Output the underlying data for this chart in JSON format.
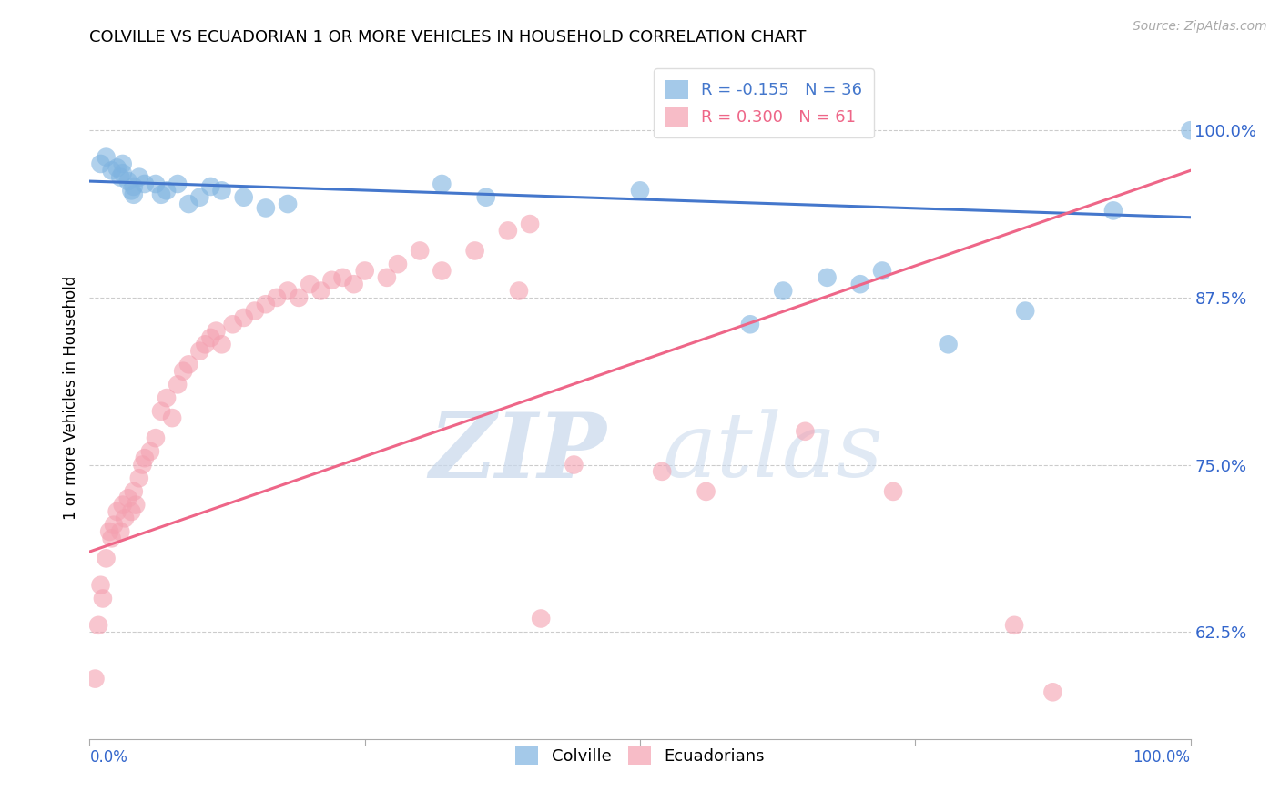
{
  "title": "COLVILLE VS ECUADORIAN 1 OR MORE VEHICLES IN HOUSEHOLD CORRELATION CHART",
  "source": "Source: ZipAtlas.com",
  "ylabel": "1 or more Vehicles in Household",
  "watermark_zip": "ZIP",
  "watermark_atlas": "atlas",
  "legend_blue_r": "R = -0.155",
  "legend_blue_n": "N = 36",
  "legend_pink_r": "R = 0.300",
  "legend_pink_n": "N = 61",
  "colville_color": "#7EB3E0",
  "ecuadorian_color": "#F4A0B0",
  "blue_line_color": "#4477CC",
  "pink_line_color": "#EE6688",
  "ytick_labels": [
    "62.5%",
    "75.0%",
    "87.5%",
    "100.0%"
  ],
  "ytick_values": [
    0.625,
    0.75,
    0.875,
    1.0
  ],
  "xtick_values": [
    0.0,
    0.25,
    0.5,
    0.75,
    1.0
  ],
  "xmin": 0.0,
  "xmax": 1.0,
  "ymin": 0.545,
  "ymax": 1.055,
  "blue_line_y0": 0.962,
  "blue_line_y1": 0.935,
  "pink_line_y0": 0.685,
  "pink_line_y1": 0.97,
  "colville_x": [
    0.01,
    0.015,
    0.02,
    0.025,
    0.028,
    0.03,
    0.03,
    0.035,
    0.038,
    0.04,
    0.04,
    0.045,
    0.05,
    0.06,
    0.065,
    0.07,
    0.08,
    0.09,
    0.1,
    0.11,
    0.12,
    0.14,
    0.16,
    0.18,
    0.32,
    0.36,
    0.5,
    0.6,
    0.63,
    0.67,
    0.7,
    0.72,
    0.78,
    0.85,
    0.93,
    1.0
  ],
  "colville_y": [
    0.975,
    0.98,
    0.97,
    0.972,
    0.965,
    0.975,
    0.968,
    0.962,
    0.955,
    0.958,
    0.952,
    0.965,
    0.96,
    0.96,
    0.952,
    0.955,
    0.96,
    0.945,
    0.95,
    0.958,
    0.955,
    0.95,
    0.942,
    0.945,
    0.96,
    0.95,
    0.955,
    0.855,
    0.88,
    0.89,
    0.885,
    0.895,
    0.84,
    0.865,
    0.94,
    1.0
  ],
  "ecuadorian_x": [
    0.005,
    0.008,
    0.01,
    0.012,
    0.015,
    0.018,
    0.02,
    0.022,
    0.025,
    0.028,
    0.03,
    0.032,
    0.035,
    0.038,
    0.04,
    0.042,
    0.045,
    0.048,
    0.05,
    0.055,
    0.06,
    0.065,
    0.07,
    0.075,
    0.08,
    0.085,
    0.09,
    0.1,
    0.105,
    0.11,
    0.115,
    0.12,
    0.13,
    0.14,
    0.15,
    0.16,
    0.17,
    0.18,
    0.19,
    0.2,
    0.21,
    0.22,
    0.23,
    0.24,
    0.25,
    0.27,
    0.28,
    0.3,
    0.32,
    0.35,
    0.38,
    0.39,
    0.4,
    0.41,
    0.44,
    0.52,
    0.56,
    0.65,
    0.73,
    0.84,
    0.875
  ],
  "ecuadorian_y": [
    0.59,
    0.63,
    0.66,
    0.65,
    0.68,
    0.7,
    0.695,
    0.705,
    0.715,
    0.7,
    0.72,
    0.71,
    0.725,
    0.715,
    0.73,
    0.72,
    0.74,
    0.75,
    0.755,
    0.76,
    0.77,
    0.79,
    0.8,
    0.785,
    0.81,
    0.82,
    0.825,
    0.835,
    0.84,
    0.845,
    0.85,
    0.84,
    0.855,
    0.86,
    0.865,
    0.87,
    0.875,
    0.88,
    0.875,
    0.885,
    0.88,
    0.888,
    0.89,
    0.885,
    0.895,
    0.89,
    0.9,
    0.91,
    0.895,
    0.91,
    0.925,
    0.88,
    0.93,
    0.635,
    0.75,
    0.745,
    0.73,
    0.775,
    0.73,
    0.63,
    0.58
  ]
}
